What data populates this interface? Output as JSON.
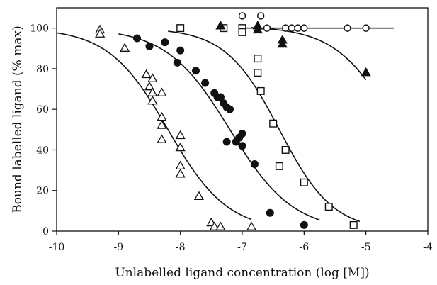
{
  "chart_data": {
    "type": "scatter",
    "title": "",
    "xlabel": "Unlabelled ligand concentration (log [M])",
    "ylabel": "Bound labelled ligand (% max)",
    "xlim": [
      -10,
      -4
    ],
    "ylim": [
      0,
      110
    ],
    "xticks": [
      "-10",
      "-9",
      "-8",
      "-7",
      "-6",
      "-5",
      "-4"
    ],
    "yticks": [
      "0",
      "20",
      "40",
      "60",
      "80",
      "100"
    ],
    "grid": false,
    "legend": "none",
    "series": [
      {
        "marker": "open-triangle",
        "points": [
          [
            -9.3,
            99
          ],
          [
            -9.3,
            97
          ],
          [
            -8.9,
            90
          ],
          [
            -8.55,
            77
          ],
          [
            -8.5,
            71
          ],
          [
            -8.45,
            75
          ],
          [
            -8.45,
            68
          ],
          [
            -8.45,
            64
          ],
          [
            -8.3,
            68
          ],
          [
            -8.3,
            56
          ],
          [
            -8.3,
            52
          ],
          [
            -8.3,
            45
          ],
          [
            -8.0,
            47
          ],
          [
            -8.0,
            41
          ],
          [
            -8.0,
            32
          ],
          [
            -8.0,
            28
          ],
          [
            -7.7,
            17
          ],
          [
            -7.5,
            4
          ],
          [
            -7.45,
            2
          ],
          [
            -7.35,
            2
          ],
          [
            -6.85,
            2
          ]
        ],
        "fit": {
          "ic50_log": -8.2,
          "hill": 0.9,
          "top": 100,
          "bottom": 0,
          "xrange": [
            -10,
            -6.85
          ]
        }
      },
      {
        "marker": "filled-circle",
        "points": [
          [
            -8.7,
            95
          ],
          [
            -8.5,
            91
          ],
          [
            -8.25,
            93
          ],
          [
            -8.0,
            89
          ],
          [
            -8.05,
            83
          ],
          [
            -7.75,
            79
          ],
          [
            -7.6,
            73
          ],
          [
            -7.45,
            68
          ],
          [
            -7.4,
            66
          ],
          [
            -7.35,
            66
          ],
          [
            -7.3,
            63
          ],
          [
            -7.25,
            61
          ],
          [
            -7.2,
            60
          ],
          [
            -7.25,
            44
          ],
          [
            -7.1,
            44
          ],
          [
            -7.05,
            46
          ],
          [
            -7.0,
            48
          ],
          [
            -7.0,
            42
          ],
          [
            -6.8,
            33
          ],
          [
            -6.55,
            9
          ],
          [
            -6.0,
            3
          ]
        ],
        "fit": {
          "ic50_log": -7.2,
          "hill": 0.85,
          "top": 100,
          "bottom": 0,
          "xrange": [
            -9.0,
            -5.75
          ]
        }
      },
      {
        "marker": "open-square",
        "points": [
          [
            -8.0,
            100
          ],
          [
            -7.3,
            100
          ],
          [
            -7.0,
            100
          ],
          [
            -7.0,
            98
          ],
          [
            -6.75,
            85
          ],
          [
            -6.75,
            78
          ],
          [
            -6.7,
            69
          ],
          [
            -6.5,
            53
          ],
          [
            -6.3,
            40
          ],
          [
            -6.4,
            32
          ],
          [
            -6.0,
            24
          ],
          [
            -5.6,
            12
          ],
          [
            -5.2,
            3
          ]
        ],
        "fit": {
          "ic50_log": -6.4,
          "hill": 1.0,
          "top": 100,
          "bottom": 0,
          "xrange": [
            -8.2,
            -5.1
          ]
        }
      },
      {
        "marker": "filled-triangle",
        "points": [
          [
            -7.35,
            101
          ],
          [
            -6.75,
            101
          ],
          [
            -6.75,
            99
          ],
          [
            -6.35,
            94
          ],
          [
            -6.35,
            92
          ],
          [
            -5.0,
            78
          ]
        ],
        "fit": {
          "ic50_log": -4.5,
          "hill": 0.9,
          "top": 101,
          "bottom": 0,
          "xrange": [
            -6.85,
            -5.0
          ]
        }
      },
      {
        "marker": "open-circle",
        "points": [
          [
            -7.0,
            106
          ],
          [
            -6.7,
            106
          ],
          [
            -6.6,
            100
          ],
          [
            -6.3,
            100
          ],
          [
            -6.2,
            100
          ],
          [
            -6.1,
            100
          ],
          [
            -6.0,
            100
          ],
          [
            -5.3,
            100
          ],
          [
            -5.0,
            100
          ]
        ],
        "fit": {
          "flat": 100,
          "xrange": [
            -7.05,
            -4.55
          ]
        }
      }
    ]
  }
}
